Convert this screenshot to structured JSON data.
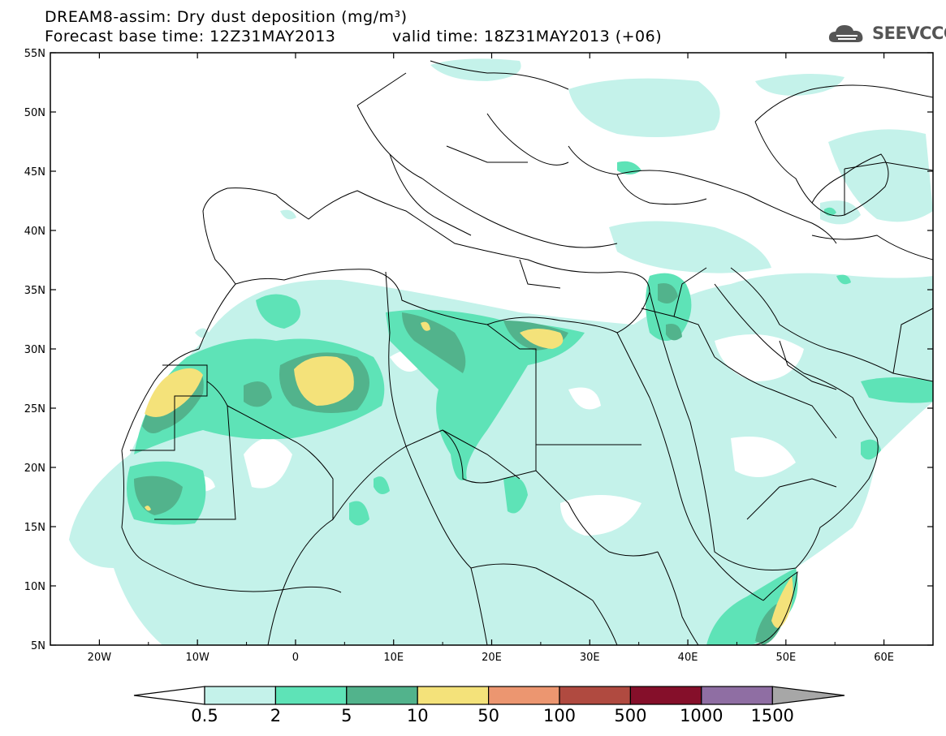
{
  "header": {
    "title_line1": "DREAM8-assim: Dry dust deposition (mg/m³)",
    "forecast_label": "Forecast base time: 12Z31MAY2013",
    "valid_label": "valid time: 18Z31MAY2013 (+06)"
  },
  "logo": {
    "text": "SEEVCCC",
    "icon": "cloud-icon"
  },
  "map": {
    "lon_range": [
      -25,
      65
    ],
    "lat_range": [
      5,
      55
    ],
    "lat_ticks": [
      "5N",
      "10N",
      "15N",
      "20N",
      "25N",
      "30N",
      "35N",
      "40N",
      "45N",
      "50N",
      "55N"
    ],
    "lon_ticks": [
      "20W",
      "10W",
      "0",
      "10E",
      "20E",
      "30E",
      "40E",
      "50E",
      "60E"
    ]
  },
  "legend": {
    "labels": [
      "0.5",
      "2",
      "5",
      "10",
      "50",
      "100",
      "500",
      "1000",
      "1500"
    ],
    "colors": [
      "#c4f2ea",
      "#5ee3b7",
      "#52b38c",
      "#f4e27a",
      "#ec9670",
      "#b04a40",
      "#850f2a",
      "#8f6ea3"
    ],
    "under_color": "#ffffff",
    "over_color": "#a7a7a7"
  }
}
